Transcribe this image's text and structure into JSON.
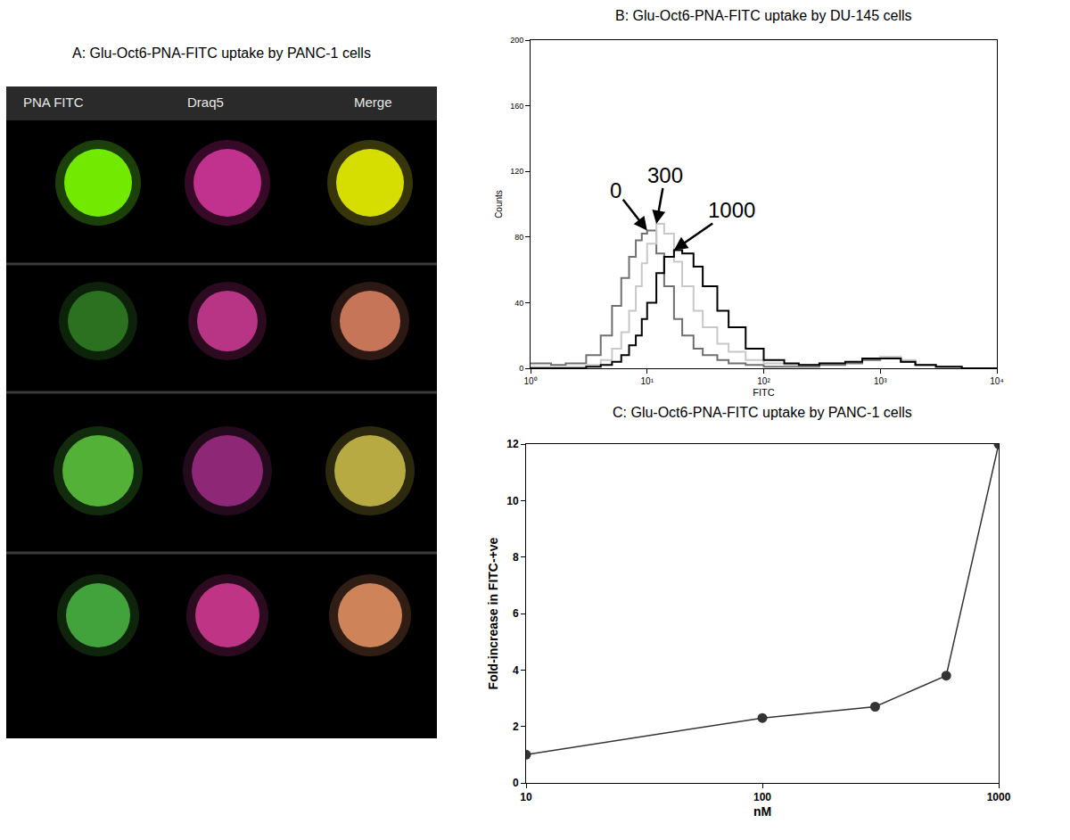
{
  "chart_data": [
    {
      "type": "image",
      "title": "A: Glu-Oct6-PNA-FITC uptake by PANC-1 cells",
      "columns": [
        "PNA FITC",
        "Draq5",
        "Merge"
      ]
    },
    {
      "type": "line",
      "title": "B: Glu-Oct6-PNA-FITC uptake by DU-145 cells",
      "xlabel": "FITC",
      "ylabel": "Counts",
      "log": "x",
      "line_style": "step",
      "xlim": [
        1,
        10000
      ],
      "xticks": [
        {
          "value": 1,
          "label": "10⁰"
        },
        {
          "value": 10,
          "label": "10¹"
        },
        {
          "value": 100,
          "label": "10²"
        },
        {
          "value": 1000,
          "label": "10³"
        },
        {
          "value": 10000,
          "label": "10⁴"
        }
      ],
      "ylim": [
        0,
        200
      ],
      "yticks": [
        0,
        40,
        80,
        120,
        160,
        200
      ],
      "x": [
        1,
        1.5,
        2,
        3,
        4,
        5,
        6,
        7,
        8,
        9,
        10,
        12,
        14,
        17,
        20,
        25,
        30,
        40,
        50,
        70,
        100,
        150,
        200,
        300,
        500,
        700,
        1000,
        1500,
        2000,
        3000,
        5000,
        10000
      ],
      "series": [
        {
          "name": "0",
          "color": "#707070",
          "values": [
            3,
            2,
            3,
            8,
            20,
            38,
            55,
            68,
            78,
            82,
            84,
            70,
            50,
            30,
            20,
            12,
            8,
            5,
            3,
            2,
            1,
            1,
            1,
            2,
            3,
            5,
            6,
            4,
            2,
            1,
            0,
            0
          ]
        },
        {
          "name": "300",
          "color": "#c8c8c8",
          "values": [
            1,
            1,
            1,
            2,
            5,
            12,
            22,
            35,
            50,
            64,
            76,
            88,
            82,
            65,
            50,
            35,
            25,
            15,
            10,
            5,
            3,
            2,
            2,
            3,
            4,
            6,
            7,
            5,
            2,
            1,
            0,
            0
          ]
        },
        {
          "name": "1000",
          "color": "#000000",
          "values": [
            0,
            0,
            0,
            1,
            2,
            4,
            8,
            14,
            20,
            30,
            40,
            58,
            68,
            72,
            70,
            62,
            50,
            35,
            25,
            12,
            5,
            3,
            2,
            3,
            4,
            6,
            6,
            4,
            2,
            1,
            0,
            0
          ]
        }
      ]
    },
    {
      "type": "line",
      "title": "C: Glu-Oct6-PNA-FITC uptake by PANC-1 cells",
      "xlabel": "nM",
      "ylabel": "Fold-increase in FITC-+ve",
      "log": "x",
      "marker": "circle",
      "color": "#333333",
      "xlim": [
        10,
        1000
      ],
      "xticks": [
        10,
        100,
        1000
      ],
      "ylim": [
        0,
        12
      ],
      "yticks": [
        0,
        2,
        4,
        6,
        8,
        10,
        12
      ],
      "x": [
        10,
        100,
        300,
        600,
        1000
      ],
      "values": [
        1,
        2.3,
        2.7,
        3.8,
        12
      ]
    }
  ]
}
